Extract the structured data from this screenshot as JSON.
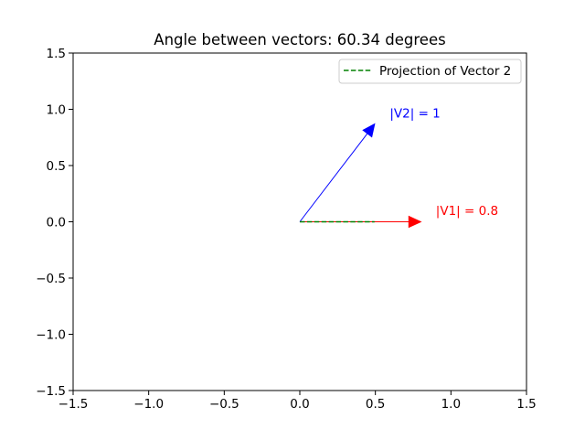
{
  "chart_data": {
    "type": "line",
    "title": "Angle between vectors: 60.34 degrees",
    "xlabel": "",
    "ylabel": "",
    "xlim": [
      -1.5,
      1.5
    ],
    "ylim": [
      -1.5,
      1.5
    ],
    "xticks": [
      -1.5,
      -1.0,
      -0.5,
      0.0,
      0.5,
      1.0,
      1.5
    ],
    "yticks": [
      -1.5,
      -1.0,
      -0.5,
      0.0,
      0.5,
      1.0,
      1.5
    ],
    "xtick_labels": [
      "−1.5",
      "−1.0",
      "−0.5",
      "0.0",
      "0.5",
      "1.0",
      "1.5"
    ],
    "ytick_labels": [
      "−1.5",
      "−1.0",
      "−0.5",
      "0.0",
      "0.5",
      "1.0",
      "1.5"
    ],
    "grid": false,
    "legend": {
      "position": "top-right"
    },
    "vectors": [
      {
        "start": [
          0,
          0
        ],
        "end": [
          0.8,
          0
        ],
        "color": "#ff0000",
        "label": "|V1| = 0.8",
        "label_pos": [
          0.9,
          0.1
        ]
      },
      {
        "start": [
          0,
          0
        ],
        "end": [
          0.495,
          0.869
        ],
        "color": "#0000ff",
        "label": "|V2| = 1",
        "label_pos": [
          0.595,
          0.969
        ]
      }
    ],
    "series": [
      {
        "name": "Projection of Vector 2",
        "x": [
          0,
          0.495
        ],
        "y": [
          0,
          0
        ],
        "color": "#008000",
        "style": "dashed"
      }
    ]
  }
}
